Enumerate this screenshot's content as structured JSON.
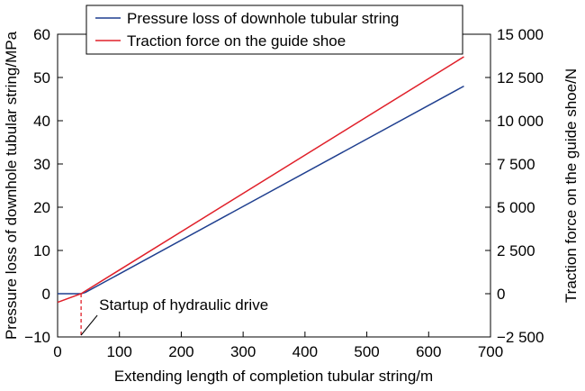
{
  "chart_data": {
    "type": "line",
    "title": "",
    "xlabel": "Extending length of completion tubular string/m",
    "ylabel_left": "Pressure loss of downhole tubular string/MPa",
    "ylabel_right": "Traction force on the guide shoe/N",
    "xlim": [
      0,
      700
    ],
    "ylim_left": [
      -10,
      60
    ],
    "ylim_right": [
      -2500,
      15000
    ],
    "x_ticks": [
      0,
      100,
      200,
      300,
      400,
      500,
      600,
      700
    ],
    "x_tick_labels": [
      "0",
      "100",
      "200",
      "300",
      "400",
      "500",
      "600",
      "700"
    ],
    "y_left_ticks": [
      -10,
      0,
      10,
      20,
      30,
      40,
      50,
      60
    ],
    "y_left_tick_labels": [
      "−10",
      "0",
      "10",
      "20",
      "30",
      "40",
      "50",
      "60"
    ],
    "y_right_ticks": [
      -2500,
      0,
      2500,
      5000,
      7500,
      10000,
      12500,
      15000
    ],
    "y_right_tick_labels": [
      "−2 500",
      "0",
      "2 500",
      "5 000",
      "7 500",
      "10 000",
      "12 500",
      "15 000"
    ],
    "legend_position": "top",
    "series": [
      {
        "name": "Pressure loss of downhole tubular string",
        "axis": "left",
        "color": "#1f3f8f",
        "x": [
          0,
          38,
          45,
          657
        ],
        "y": [
          0,
          0,
          0.3,
          48
        ]
      },
      {
        "name": "Traction force on the guide shoe",
        "axis": "right",
        "color": "#e0202a",
        "x": [
          0,
          38,
          657
        ],
        "y": [
          -500,
          0,
          13700
        ]
      }
    ],
    "annotations": [
      {
        "text": "Startup of hydraulic drive",
        "x": 38,
        "marker": "dashed-vertical",
        "marker_color": "#e0202a"
      }
    ]
  }
}
